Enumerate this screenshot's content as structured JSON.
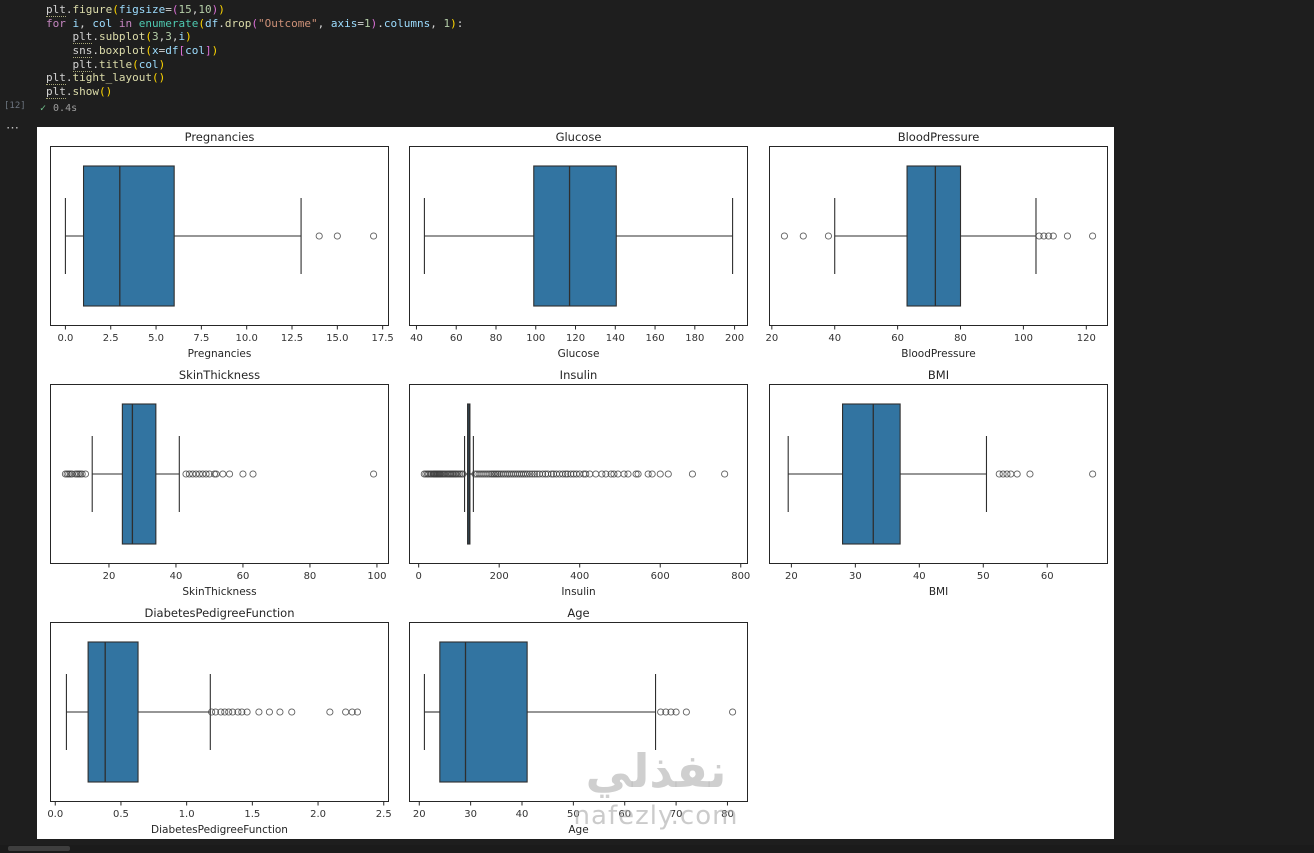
{
  "colors": {
    "editor_bg": "#1e1e1e",
    "figure_bg": "#ffffff",
    "box_fill": "#3274a1",
    "box_edge": "#2e2e2e",
    "frame": "#262626",
    "tick_text": "#333333"
  },
  "editor": {
    "execution_label": "[12]",
    "overflow_dots": "⋯",
    "status_check": "✓",
    "status_time": "0.4s",
    "code_lines": [
      [
        {
          "t": "plt",
          "c": "mod u"
        },
        {
          "t": ".",
          "c": "p"
        },
        {
          "t": "figure",
          "c": "fn"
        },
        {
          "t": "(",
          "c": "b1"
        },
        {
          "t": "figsize",
          "c": "var"
        },
        {
          "t": "=",
          "c": "p"
        },
        {
          "t": "(",
          "c": "b2"
        },
        {
          "t": "15",
          "c": "num"
        },
        {
          "t": ",",
          "c": "p"
        },
        {
          "t": "10",
          "c": "num"
        },
        {
          "t": ")",
          "c": "b2"
        },
        {
          "t": ")",
          "c": "b1"
        }
      ],
      [
        {
          "t": "for",
          "c": "kw"
        },
        {
          "t": " ",
          "c": "p"
        },
        {
          "t": "i",
          "c": "var"
        },
        {
          "t": ", ",
          "c": "p"
        },
        {
          "t": "col",
          "c": "var"
        },
        {
          "t": " ",
          "c": "p"
        },
        {
          "t": "in",
          "c": "kw"
        },
        {
          "t": " ",
          "c": "p"
        },
        {
          "t": "enumerate",
          "c": "bi"
        },
        {
          "t": "(",
          "c": "b1"
        },
        {
          "t": "df",
          "c": "var"
        },
        {
          "t": ".",
          "c": "p"
        },
        {
          "t": "drop",
          "c": "fn"
        },
        {
          "t": "(",
          "c": "b2"
        },
        {
          "t": "\"Outcome\"",
          "c": "str"
        },
        {
          "t": ", ",
          "c": "p"
        },
        {
          "t": "axis",
          "c": "var"
        },
        {
          "t": "=",
          "c": "p"
        },
        {
          "t": "1",
          "c": "num"
        },
        {
          "t": ")",
          "c": "b2"
        },
        {
          "t": ".",
          "c": "p"
        },
        {
          "t": "columns",
          "c": "var"
        },
        {
          "t": ", ",
          "c": "p"
        },
        {
          "t": "1",
          "c": "num"
        },
        {
          "t": ")",
          "c": "b1"
        },
        {
          "t": ":",
          "c": "p"
        }
      ],
      [
        {
          "t": "    ",
          "c": "p"
        },
        {
          "t": "plt",
          "c": "mod u"
        },
        {
          "t": ".",
          "c": "p"
        },
        {
          "t": "subplot",
          "c": "fn"
        },
        {
          "t": "(",
          "c": "b1"
        },
        {
          "t": "3",
          "c": "num"
        },
        {
          "t": ",",
          "c": "p"
        },
        {
          "t": "3",
          "c": "num"
        },
        {
          "t": ",",
          "c": "p"
        },
        {
          "t": "i",
          "c": "var"
        },
        {
          "t": ")",
          "c": "b1"
        }
      ],
      [
        {
          "t": "    ",
          "c": "p"
        },
        {
          "t": "sns",
          "c": "mod u"
        },
        {
          "t": ".",
          "c": "p"
        },
        {
          "t": "boxplot",
          "c": "fn"
        },
        {
          "t": "(",
          "c": "b1"
        },
        {
          "t": "x",
          "c": "var"
        },
        {
          "t": "=",
          "c": "p"
        },
        {
          "t": "df",
          "c": "var"
        },
        {
          "t": "[",
          "c": "b2"
        },
        {
          "t": "col",
          "c": "var"
        },
        {
          "t": "]",
          "c": "b2"
        },
        {
          "t": ")",
          "c": "b1"
        }
      ],
      [
        {
          "t": "    ",
          "c": "p"
        },
        {
          "t": "plt",
          "c": "mod u"
        },
        {
          "t": ".",
          "c": "p"
        },
        {
          "t": "title",
          "c": "fn"
        },
        {
          "t": "(",
          "c": "b1"
        },
        {
          "t": "col",
          "c": "var"
        },
        {
          "t": ")",
          "c": "b1"
        }
      ],
      [
        {
          "t": "plt",
          "c": "mod u"
        },
        {
          "t": ".",
          "c": "p"
        },
        {
          "t": "tight_layout",
          "c": "fn"
        },
        {
          "t": "(",
          "c": "b1"
        },
        {
          "t": ")",
          "c": "b1"
        }
      ],
      [
        {
          "t": "plt",
          "c": "mod u"
        },
        {
          "t": ".",
          "c": "p"
        },
        {
          "t": "show",
          "c": "fn"
        },
        {
          "t": "(",
          "c": "b1"
        },
        {
          "t": ")",
          "c": "b1"
        }
      ]
    ]
  },
  "watermark": {
    "arabic": "نفذلي",
    "latin": "nafezly.com"
  },
  "chart_data": [
    {
      "type": "boxplot",
      "title": "Pregnancies",
      "xlabel": "Pregnancies",
      "xlim": [
        -0.85,
        17.85
      ],
      "ticks": [
        0,
        2.5,
        5,
        7.5,
        10,
        12.5,
        15,
        17.5
      ],
      "tick_labels": [
        "0.0",
        "2.5",
        "5.0",
        "7.5",
        "10.0",
        "12.5",
        "15.0",
        "17.5"
      ],
      "whislo": 0,
      "q1": 1,
      "med": 3,
      "q3": 6,
      "whishi": 13,
      "outliers": [
        14,
        15,
        17
      ]
    },
    {
      "type": "boxplot",
      "title": "Glucose",
      "xlabel": "Glucose",
      "xlim": [
        36.25,
        206.75
      ],
      "ticks": [
        40,
        60,
        80,
        100,
        120,
        140,
        160,
        180,
        200
      ],
      "tick_labels": [
        "40",
        "60",
        "80",
        "100",
        "120",
        "140",
        "160",
        "180",
        "200"
      ],
      "whislo": 44,
      "q1": 99,
      "med": 117,
      "q3": 140.5,
      "whishi": 199,
      "outliers": []
    },
    {
      "type": "boxplot",
      "title": "BloodPressure",
      "xlabel": "BloodPressure",
      "xlim": [
        19.1,
        126.9
      ],
      "ticks": [
        20,
        40,
        60,
        80,
        100,
        120
      ],
      "tick_labels": [
        "20",
        "40",
        "60",
        "80",
        "100",
        "120"
      ],
      "whislo": 40,
      "q1": 63,
      "med": 72,
      "q3": 80,
      "whishi": 104,
      "outliers": [
        24,
        30,
        38,
        105,
        106.5,
        108,
        109.5,
        114,
        122
      ]
    },
    {
      "type": "boxplot",
      "title": "SkinThickness",
      "xlabel": "SkinThickness",
      "xlim": [
        2.4,
        103.6
      ],
      "ticks": [
        20,
        40,
        60,
        80,
        100
      ],
      "tick_labels": [
        "20",
        "40",
        "60",
        "80",
        "100"
      ],
      "whislo": 15,
      "q1": 24,
      "med": 27,
      "q3": 34,
      "whishi": 41,
      "outliers": [
        7,
        7.5,
        8,
        8.5,
        9,
        10,
        10.5,
        11,
        11.5,
        12,
        13,
        43,
        44,
        45,
        46,
        47,
        48,
        49,
        50,
        51.5,
        52,
        54,
        56,
        60,
        63,
        99
      ]
    },
    {
      "type": "boxplot",
      "title": "Insulin",
      "xlabel": "Insulin",
      "xlim": [
        -24,
        818
      ],
      "ticks": [
        0,
        200,
        400,
        600,
        800
      ],
      "tick_labels": [
        "0",
        "200",
        "400",
        "600",
        "800"
      ],
      "whislo": 114,
      "q1": 121.5,
      "med": 125,
      "q3": 127.3,
      "whishi": 135.9,
      "outliers": [
        14,
        18,
        22,
        25,
        29,
        32,
        36,
        38,
        40,
        42,
        44,
        46,
        48,
        50,
        52,
        54,
        57,
        60,
        63,
        66,
        70,
        73,
        76,
        79,
        82,
        85,
        88,
        91,
        94,
        98,
        102,
        106,
        110,
        140,
        145,
        150,
        155,
        160,
        165,
        170,
        175,
        180,
        184,
        188,
        192,
        196,
        200,
        205,
        210,
        215,
        220,
        225,
        230,
        235,
        240,
        245,
        250,
        255,
        260,
        265,
        270,
        276,
        282,
        288,
        294,
        300,
        308,
        315,
        321,
        330,
        335,
        342,
        350,
        358,
        365,
        370,
        378,
        385,
        392,
        400,
        410,
        415,
        425,
        440,
        455,
        465,
        478,
        485,
        495,
        510,
        520,
        540,
        545,
        570,
        580,
        600,
        620,
        680,
        760
      ]
    },
    {
      "type": "boxplot",
      "title": "BMI",
      "xlabel": "BMI",
      "xlim": [
        16.5,
        69.5
      ],
      "ticks": [
        20,
        30,
        40,
        50,
        60
      ],
      "tick_labels": [
        "20",
        "30",
        "40",
        "50",
        "60"
      ],
      "whislo": 19.5,
      "q1": 28,
      "med": 32.8,
      "q3": 37,
      "whishi": 50.5,
      "outliers": [
        52.5,
        53.1,
        53.7,
        54.3,
        55.3,
        57.3,
        67.1
      ]
    },
    {
      "type": "boxplot",
      "title": "DiabetesPedigreeFunction",
      "xlabel": "DiabetesPedigreeFunction",
      "xlim": [
        -0.04,
        2.54
      ],
      "ticks": [
        0,
        0.5,
        1,
        1.5,
        2,
        2.5
      ],
      "tick_labels": [
        "0.0",
        "0.5",
        "1.0",
        "1.5",
        "2.0",
        "2.5"
      ],
      "whislo": 0.085,
      "q1": 0.25,
      "med": 0.38,
      "q3": 0.63,
      "whishi": 1.18,
      "outliers": [
        1.19,
        1.22,
        1.26,
        1.29,
        1.32,
        1.35,
        1.39,
        1.42,
        1.46,
        1.55,
        1.63,
        1.71,
        1.8,
        2.09,
        2.21,
        2.26,
        2.3
      ]
    },
    {
      "type": "boxplot",
      "title": "Age",
      "xlabel": "Age",
      "xlim": [
        18,
        84
      ],
      "ticks": [
        20,
        30,
        40,
        50,
        60,
        70,
        80
      ],
      "tick_labels": [
        "20",
        "30",
        "40",
        "50",
        "60",
        "70",
        "80"
      ],
      "whislo": 21,
      "q1": 24,
      "med": 29,
      "q3": 41,
      "whishi": 66,
      "outliers": [
        67,
        68,
        69,
        70,
        72,
        81
      ]
    }
  ]
}
